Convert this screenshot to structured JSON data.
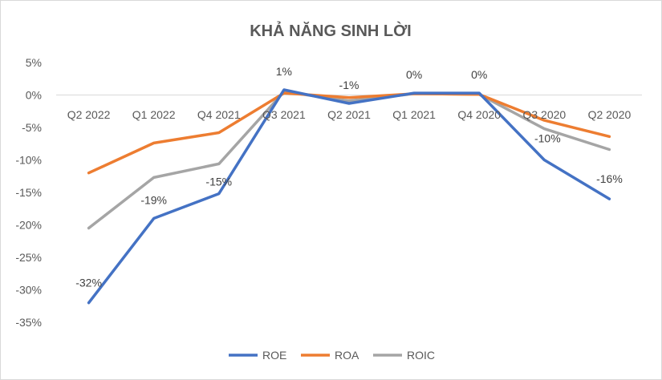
{
  "chart_data": {
    "type": "line",
    "title": "KHẢ NĂNG SINH LỜI",
    "categories": [
      "Q2 2022",
      "Q1 2022",
      "Q4 2021",
      "Q3 2021",
      "Q2 2021",
      "Q1 2021",
      "Q4 2020",
      "Q3 2020",
      "Q2 2020"
    ],
    "yticks": [
      "5%",
      "0%",
      "-5%",
      "-10%",
      "-15%",
      "-20%",
      "-25%",
      "-30%",
      "-35%"
    ],
    "ylim": [
      -35,
      5
    ],
    "grid": false,
    "legend": "bottom",
    "series": [
      {
        "name": "ROE",
        "color": "#4472c4",
        "values": [
          -32,
          -19,
          -15.2,
          0.8,
          -1.3,
          0.3,
          0.3,
          -10,
          -16
        ],
        "labels": [
          "-32%",
          "-19%",
          "-15%",
          "1%",
          "-1%",
          "0%",
          "0%",
          "-10%",
          "-16%"
        ]
      },
      {
        "name": "ROA",
        "color": "#ed7d31",
        "values": [
          -12,
          -7.4,
          -5.8,
          0.3,
          -0.4,
          0.2,
          0.1,
          -3.9,
          -6.4
        ]
      },
      {
        "name": "ROIC",
        "color": "#a5a5a5",
        "values": [
          -20.5,
          -12.7,
          -10.6,
          0.5,
          -0.9,
          0.2,
          0.1,
          -5.2,
          -8.4
        ]
      }
    ]
  }
}
